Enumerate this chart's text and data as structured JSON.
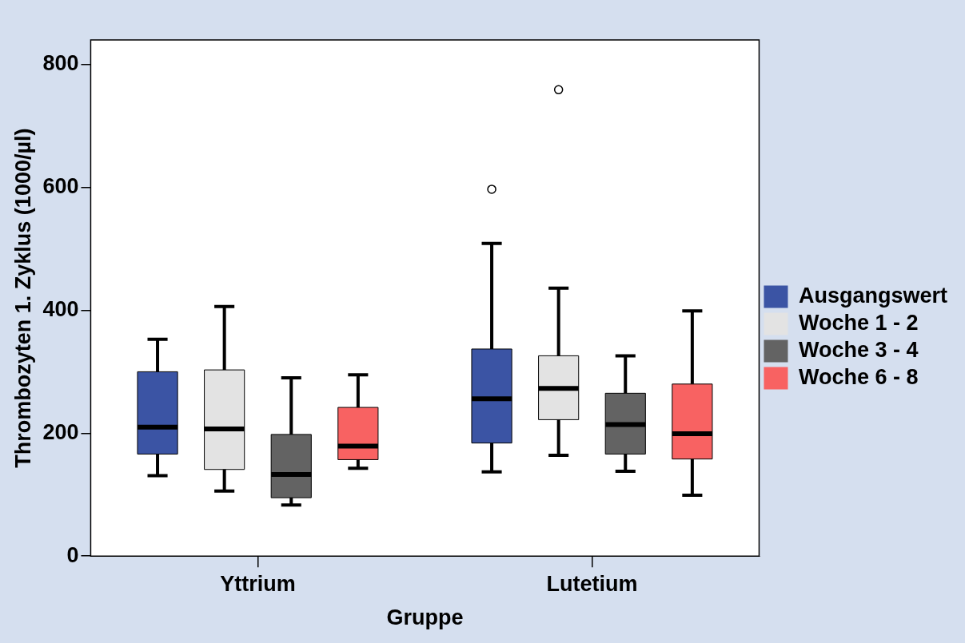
{
  "chart_data": {
    "type": "box",
    "xlabel": "Gruppe",
    "ylabel": "Thrombozyten 1. Zyklus (1000/µl)",
    "categories": [
      "Yttrium",
      "Lutetium"
    ],
    "ylim": [
      0,
      840
    ],
    "yticks": [
      0,
      200,
      400,
      600,
      800
    ],
    "legend": "right",
    "series": [
      {
        "name": "Ausgangswert",
        "color": "#3b54a4",
        "boxes": [
          {
            "low": 131,
            "q1": 166,
            "median": 210,
            "q3": 300,
            "high": 353
          },
          {
            "low": 137,
            "q1": 184,
            "median": 256,
            "q3": 337,
            "high": 509,
            "outliers": [
              597
            ]
          }
        ]
      },
      {
        "name": "Woche 1 - 2",
        "color": "#e3e3e3",
        "boxes": [
          {
            "low": 106,
            "q1": 141,
            "median": 207,
            "q3": 303,
            "high": 406
          },
          {
            "low": 164,
            "q1": 222,
            "median": 273,
            "q3": 326,
            "high": 436,
            "outliers": [
              759
            ]
          }
        ]
      },
      {
        "name": "Woche 3 - 4",
        "color": "#636363",
        "boxes": [
          {
            "low": 83,
            "q1": 95,
            "median": 133,
            "q3": 198,
            "high": 290
          },
          {
            "low": 138,
            "q1": 166,
            "median": 214,
            "q3": 265,
            "high": 326
          }
        ]
      },
      {
        "name": "Woche 6 - 8",
        "color": "#f86262",
        "boxes": [
          {
            "low": 143,
            "q1": 157,
            "median": 179,
            "q3": 242,
            "high": 295
          },
          {
            "low": 99,
            "q1": 158,
            "median": 199,
            "q3": 280,
            "high": 399
          }
        ]
      }
    ]
  }
}
